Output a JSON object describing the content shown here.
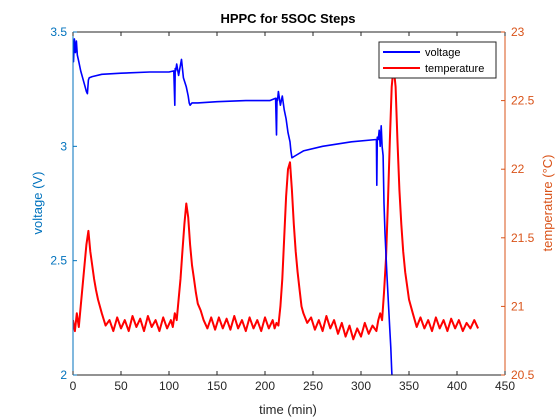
{
  "chart_data": {
    "type": "line",
    "title": "HPPC for 5SOC Steps",
    "xlabel": "time (min)",
    "ylabel_left": "voltage (V)",
    "ylabel_right": "temperature (°C)",
    "xlim": [
      0,
      450
    ],
    "ylim_left": [
      2,
      3.5
    ],
    "ylim_right": [
      20.5,
      23
    ],
    "x_ticks": [
      "0",
      "50",
      "100",
      "150",
      "200",
      "250",
      "300",
      "350",
      "400",
      "450"
    ],
    "y_ticks_left": [
      "2",
      "2.5",
      "3",
      "3.5"
    ],
    "y_ticks_right": [
      "20.5",
      "21",
      "21.5",
      "22",
      "22.5",
      "23"
    ],
    "legend_position": "top-right",
    "grid": false,
    "colors": {
      "voltage": "#0000ff",
      "temperature": "#ff0000",
      "left_axis": "#0072bd",
      "right_axis": "#d95319",
      "frame": "#262626"
    },
    "series": [
      {
        "name": "voltage",
        "axis": "left",
        "x": [
          0,
          0.5,
          1.5,
          2.5,
          3.5,
          4.5,
          6,
          8,
          10,
          12,
          14,
          15,
          16,
          17,
          20,
          30,
          50,
          80,
          100,
          105,
          106,
          106.5,
          107,
          108,
          110,
          113,
          115,
          118,
          120,
          121,
          122,
          124,
          130,
          150,
          180,
          205,
          211,
          212,
          212.5,
          213,
          214,
          216,
          218,
          220,
          222,
          224,
          226,
          227,
          228,
          232,
          240,
          260,
          290,
          316,
          316.5,
          317,
          318,
          319,
          320,
          321,
          322,
          323,
          324,
          325,
          327,
          330,
          331,
          332,
          332.5
        ],
        "y": [
          3.4,
          3.37,
          3.47,
          3.41,
          3.46,
          3.4,
          3.37,
          3.33,
          3.3,
          3.27,
          3.24,
          3.23,
          3.29,
          3.3,
          3.305,
          3.315,
          3.32,
          3.325,
          3.325,
          3.33,
          3.18,
          3.34,
          3.33,
          3.36,
          3.31,
          3.38,
          3.3,
          3.26,
          3.22,
          3.19,
          3.18,
          3.19,
          3.19,
          3.195,
          3.2,
          3.2,
          3.21,
          3.05,
          3.21,
          3.2,
          3.24,
          3.18,
          3.22,
          3.16,
          3.12,
          3.06,
          3.02,
          2.98,
          2.95,
          2.96,
          2.98,
          3.0,
          3.02,
          3.03,
          2.83,
          3.04,
          3.03,
          3.07,
          3.0,
          3.09,
          3.0,
          2.96,
          2.75,
          2.62,
          2.44,
          2.2,
          2.12,
          2.02,
          1.98
        ]
      },
      {
        "name": "temperature",
        "axis": "right",
        "x": [
          0,
          2,
          4,
          6,
          8,
          10,
          12,
          14,
          16,
          18,
          20,
          22,
          24,
          26,
          28,
          30,
          34,
          38,
          42,
          46,
          50,
          54,
          58,
          62,
          66,
          70,
          74,
          78,
          82,
          86,
          90,
          94,
          98,
          102,
          104,
          106,
          108,
          110,
          112,
          114,
          116,
          118,
          120,
          122,
          124,
          126,
          128,
          130,
          133,
          136,
          140,
          144,
          148,
          152,
          156,
          160,
          164,
          168,
          172,
          176,
          180,
          184,
          188,
          192,
          196,
          200,
          204,
          208,
          210,
          212,
          214,
          216,
          218,
          220,
          222,
          224,
          226,
          228,
          230,
          232,
          234,
          236,
          238,
          240,
          244,
          248,
          252,
          256,
          260,
          264,
          268,
          272,
          276,
          280,
          284,
          288,
          292,
          296,
          300,
          304,
          308,
          312,
          316,
          318,
          320,
          322,
          324,
          326,
          328,
          330,
          332,
          334,
          336,
          338,
          340,
          342,
          344,
          346,
          348,
          350,
          354,
          358,
          362,
          366,
          370,
          374,
          378,
          382,
          386,
          390,
          394,
          398,
          402,
          406,
          410,
          414,
          418,
          422
        ],
        "y": [
          20.9,
          20.82,
          20.95,
          20.85,
          21.0,
          21.15,
          21.3,
          21.45,
          21.55,
          21.4,
          21.3,
          21.2,
          21.12,
          21.05,
          21.0,
          20.95,
          20.86,
          20.9,
          20.82,
          20.92,
          20.84,
          20.9,
          20.82,
          20.93,
          20.85,
          20.91,
          20.82,
          20.93,
          20.85,
          20.9,
          20.82,
          20.92,
          20.84,
          20.9,
          20.85,
          20.95,
          20.9,
          21.05,
          21.2,
          21.4,
          21.6,
          21.75,
          21.65,
          21.45,
          21.3,
          21.2,
          21.1,
          21.02,
          20.97,
          20.9,
          20.84,
          20.92,
          20.83,
          20.92,
          20.84,
          20.91,
          20.83,
          20.93,
          20.84,
          20.9,
          20.82,
          20.92,
          20.84,
          20.9,
          20.82,
          20.92,
          20.84,
          20.9,
          20.84,
          20.88,
          20.86,
          21.0,
          21.2,
          21.5,
          21.8,
          22.0,
          22.05,
          21.85,
          21.6,
          21.4,
          21.25,
          21.12,
          21.0,
          20.95,
          20.88,
          20.92,
          20.83,
          20.9,
          20.82,
          20.93,
          20.84,
          20.9,
          20.8,
          20.88,
          20.78,
          20.86,
          20.76,
          20.84,
          20.78,
          20.88,
          20.8,
          20.86,
          20.82,
          20.9,
          20.95,
          20.9,
          21.1,
          21.35,
          21.75,
          22.2,
          22.6,
          22.75,
          22.6,
          22.2,
          21.85,
          21.6,
          21.4,
          21.25,
          21.15,
          21.05,
          20.95,
          20.85,
          20.92,
          20.84,
          20.9,
          20.82,
          20.92,
          20.84,
          20.9,
          20.82,
          20.91,
          20.84,
          20.9,
          20.82,
          20.88,
          20.84,
          20.9,
          20.84
        ]
      }
    ]
  }
}
